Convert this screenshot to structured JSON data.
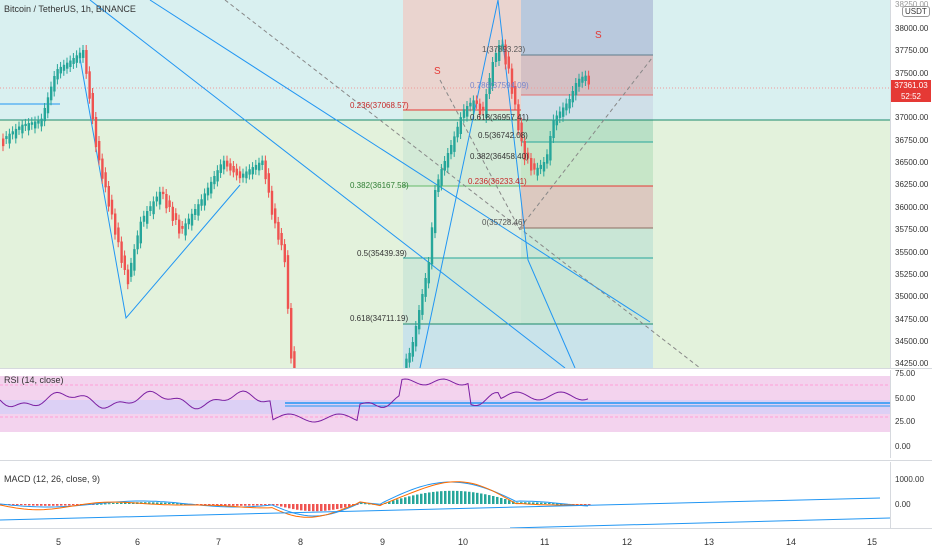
{
  "chart": {
    "title": "Bitcoin / TetherUS, 1h, BINANCE",
    "currency": "USDT",
    "price_label": "37361.03",
    "countdown": "52:52",
    "y_labels": [
      "38000.00",
      "37750.00",
      "37500.00",
      "37250.00",
      "37000.00",
      "36750.00",
      "36500.00",
      "36250.00",
      "36000.00",
      "35750.00",
      "35500.00",
      "35250.00",
      "35000.00",
      "34750.00",
      "34500.00",
      "34250.00"
    ],
    "y_top_partial": "38250.00",
    "fib_left": [
      "0.236(37068.57)",
      "0.382(36167.58)",
      "0.5(35439.39)",
      "0.618(34711.19)"
    ],
    "fib_right": [
      "1(37893.23)",
      "0.786(37594.09)",
      "0.618(36957.41)",
      "0.5(36742.08)",
      "0.382(36458.40)",
      "0.236(36233.41)",
      "0(35728.46)"
    ],
    "s_markers": [
      "S",
      "S"
    ],
    "colors": {
      "up": "#26a69a",
      "down": "#ef5350",
      "line": "#2196f3"
    }
  },
  "rsi": {
    "title": "RSI (14, close)",
    "y_labels": [
      "75.00",
      "50.00",
      "25.00",
      "0.00"
    ]
  },
  "macd": {
    "title": "MACD (12, 26, close, 9)",
    "y_labels": [
      "1000.00",
      "0.00"
    ]
  },
  "x_labels": [
    "5",
    "6",
    "7",
    "8",
    "9",
    "10",
    "11",
    "12",
    "13",
    "14",
    "15"
  ]
}
